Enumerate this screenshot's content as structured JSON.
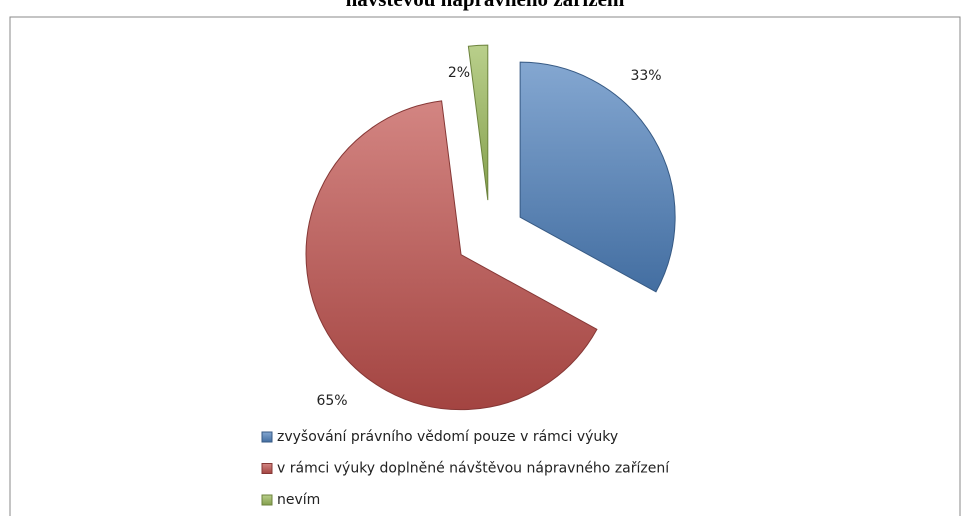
{
  "chart_data": {
    "type": "pie",
    "title": "návštěvou nápravného zařízení",
    "categories": [
      "zvyšování právního vědomí pouze v rámci výuky",
      "v rámci výuky doplněné návštěvou nápravného zařízení",
      "nevím"
    ],
    "values": [
      33,
      65,
      2
    ],
    "value_labels": [
      "33%",
      "65%",
      "2%"
    ],
    "colors": [
      "#4f81bd",
      "#c0504d",
      "#9bbb59"
    ],
    "legend": "bottom"
  }
}
